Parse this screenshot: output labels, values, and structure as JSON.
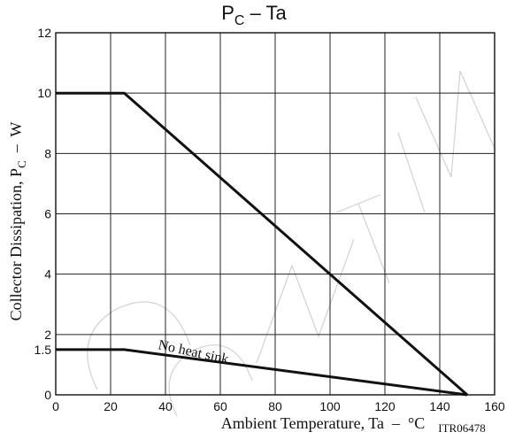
{
  "chart_data": {
    "type": "line",
    "title": "P",
    "title_subscript": "C",
    "title_suffix": " – Ta",
    "xlabel": "Ambient Temperature, Ta  –  °C",
    "ylabel": "Collector Dissipation, P",
    "ylabel_subscript": "C",
    "ylabel_suffix": "  –  W",
    "xlim": [
      0,
      160
    ],
    "ylim": [
      0,
      12
    ],
    "x_ticks": [
      0,
      20,
      40,
      60,
      80,
      100,
      120,
      140,
      160
    ],
    "y_ticks": [
      0,
      1.5,
      2,
      4,
      6,
      8,
      10,
      12
    ],
    "y_tick_labels": [
      "0",
      "1.5",
      "2",
      "4",
      "6",
      "8",
      "10",
      "12"
    ],
    "y_grid": [
      2,
      4,
      6,
      8,
      10
    ],
    "grid": true,
    "series": [
      {
        "points": [
          [
            0,
            10
          ],
          [
            25,
            10
          ],
          [
            150,
            0
          ]
        ]
      },
      {
        "points": [
          [
            0,
            1.5
          ],
          [
            25,
            1.5
          ],
          [
            150,
            0
          ]
        ]
      }
    ],
    "annotations": [
      {
        "text": "No heat sink",
        "x": 33,
        "y": 1.4
      }
    ],
    "figure_code": "ITR06478"
  },
  "watermark": {
    "text": "DISCONTINUED"
  }
}
